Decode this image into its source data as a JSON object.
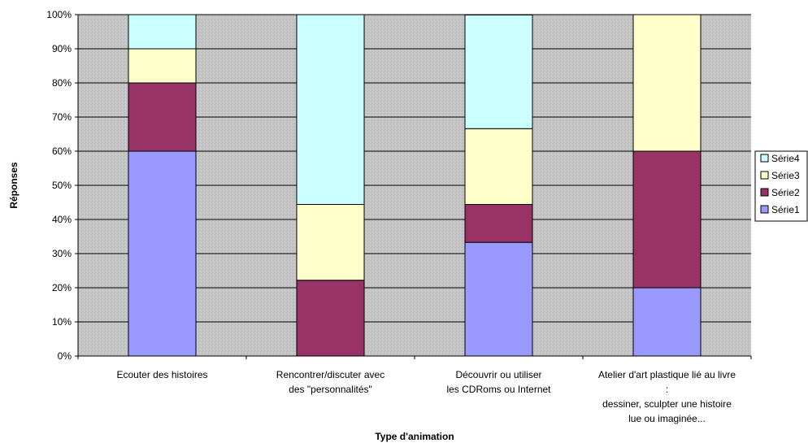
{
  "chart_data": {
    "type": "bar",
    "stacked": true,
    "percent": true,
    "categories": [
      [
        "Ecouter des histoires"
      ],
      [
        "Rencontrer/discuter avec",
        "des \"personnalités\""
      ],
      [
        "Découvrir ou utiliser",
        "les CDRoms ou Internet"
      ],
      [
        "Atelier d'art plastique lié au livre",
        ":",
        "dessiner, sculpter une histoire",
        "lue ou imaginée..."
      ]
    ],
    "series": [
      {
        "name": "Série1",
        "color": "#9999ff",
        "values": [
          60,
          0,
          33.3,
          20
        ]
      },
      {
        "name": "Série2",
        "color": "#993366",
        "values": [
          20,
          22.2,
          11.1,
          40
        ]
      },
      {
        "name": "Série3",
        "color": "#ffffcc",
        "values": [
          10,
          22.2,
          22.2,
          40
        ]
      },
      {
        "name": "Série4",
        "color": "#ccffff",
        "values": [
          10,
          55.6,
          33.3,
          0
        ]
      }
    ],
    "ylim": [
      0,
      100
    ],
    "yticks": [
      "0%",
      "10%",
      "20%",
      "30%",
      "40%",
      "50%",
      "60%",
      "70%",
      "80%",
      "90%",
      "100%"
    ],
    "xlabel": "Type d'animation",
    "ylabel": "Réponses",
    "legend_position": "right",
    "grid": true,
    "plot_background": "#c0c0c0"
  }
}
